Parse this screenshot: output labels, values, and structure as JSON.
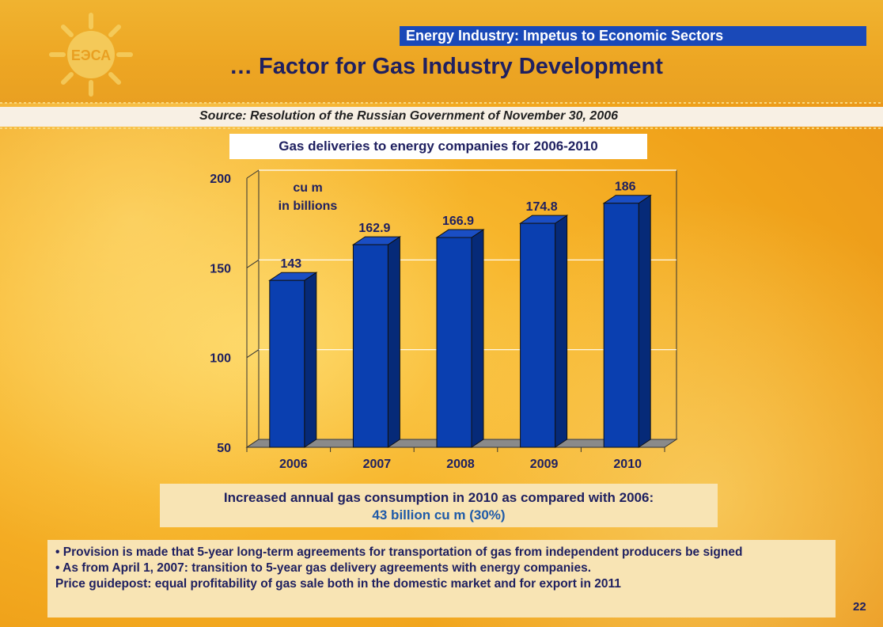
{
  "header": {
    "section_label": "Energy Industry: Impetus to Economic Sectors",
    "title": "… Factor for Gas Industry Development",
    "logo_text": "ЕЭСА"
  },
  "source": "Source: Resolution of the Russian Government of November 30, 2006",
  "chart_data": {
    "type": "bar",
    "title": "Gas deliveries to energy companies for 2006-2010",
    "unit_label": [
      "cu m",
      "in billions"
    ],
    "categories": [
      "2006",
      "2007",
      "2008",
      "2009",
      "2010"
    ],
    "values": [
      143,
      162.9,
      166.9,
      174.8,
      186
    ],
    "value_labels": [
      "143",
      "162.9",
      "166.9",
      "174.8",
      "186"
    ],
    "ylim": [
      50,
      200
    ],
    "yticks": [
      50,
      100,
      150,
      200
    ],
    "grid": true,
    "bar_color": "#0a3fb0",
    "xlabel": "",
    "ylabel": ""
  },
  "summary": {
    "line1": "Increased annual gas consumption in 2010 as compared with 2006:",
    "line2": "43 billion cu m (30%)"
  },
  "notes": [
    "• Provision is made that 5-year long-term agreements for transportation of gas from independent producers be signed",
    "• As from April 1, 2007: transition to 5-year gas delivery agreements with energy companies.",
    "Price guidepost: equal profitability of gas sale both in the domestic market and for export in 2011"
  ],
  "page_number": "22",
  "colors": {
    "banner": "#1a49b8",
    "title_text": "#1f2060",
    "highlight_text": "#1e5aa8"
  }
}
